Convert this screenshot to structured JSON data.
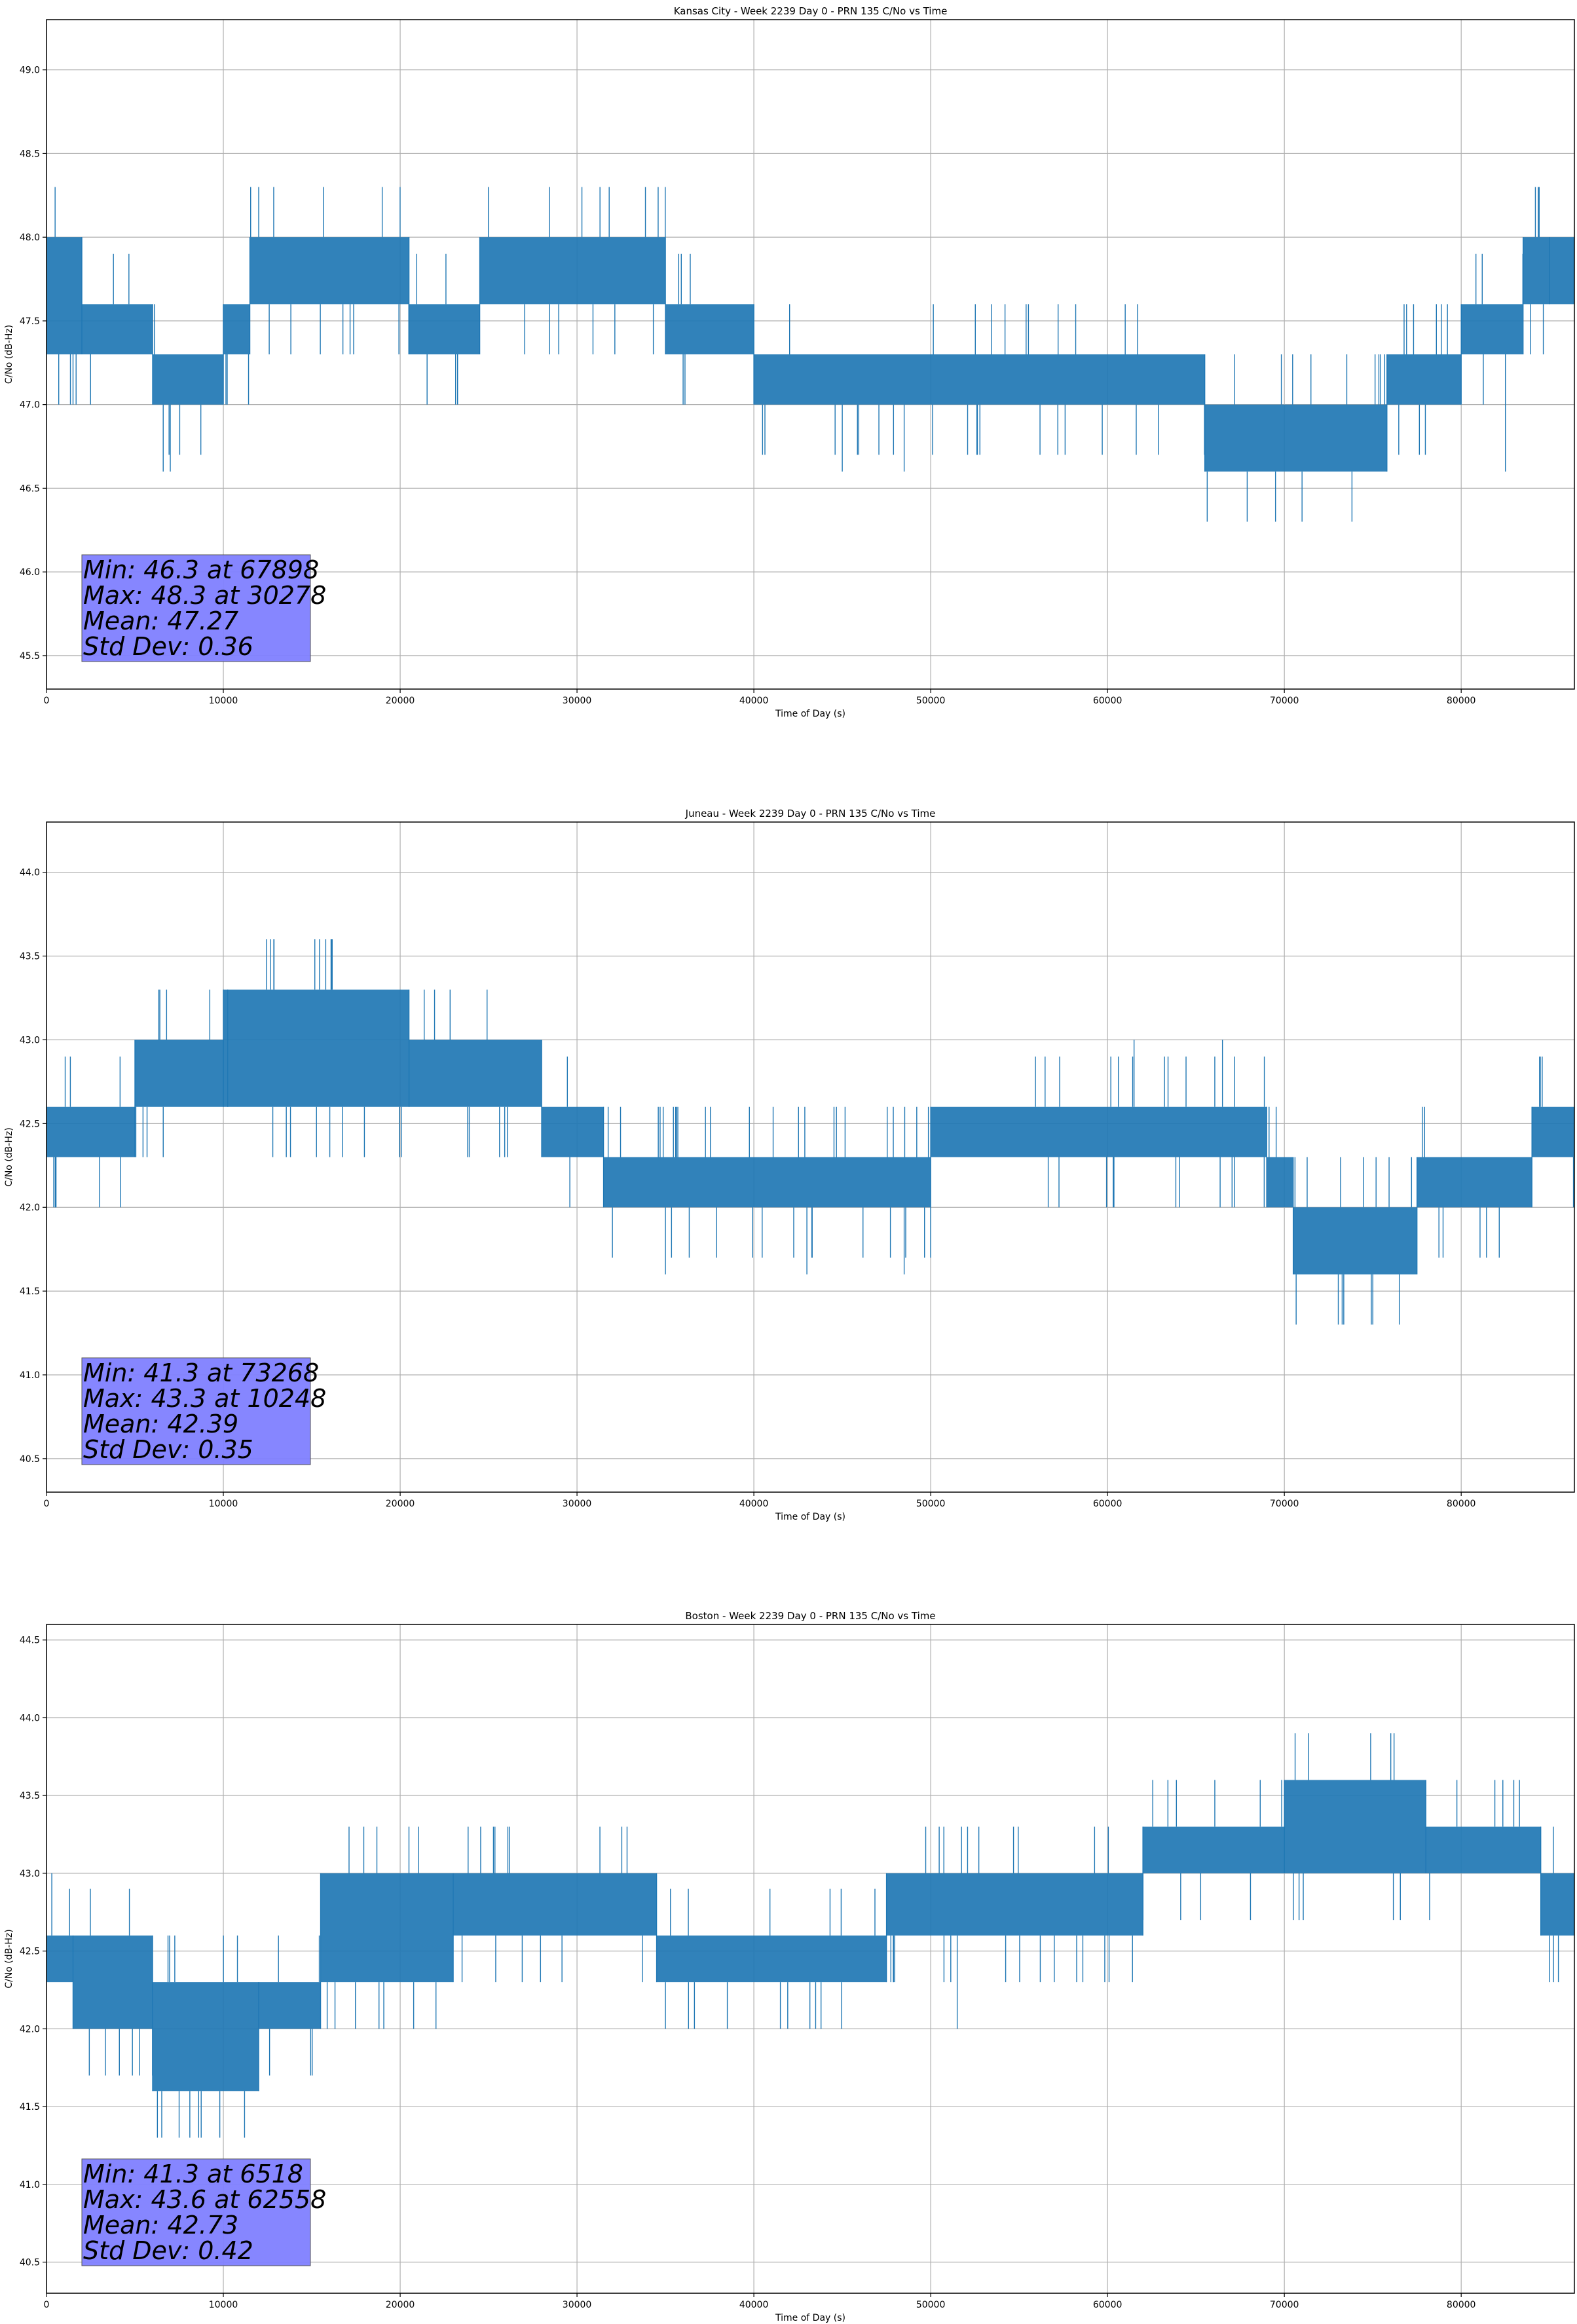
{
  "colors": {
    "line": "#1f77b4",
    "grid": "#b0b0b0",
    "stats_box": "#8080ff",
    "axis": "#000000"
  },
  "chart_data": [
    {
      "type": "line",
      "title": "Kansas City - Week 2239 Day 0 - PRN 135 C/No vs Time",
      "xlabel": "Time of Day (s)",
      "ylabel": "C/No (dB-Hz)",
      "xlim": [
        0,
        86400
      ],
      "ylim": [
        45.3,
        49.3
      ],
      "xticks": [
        0,
        10000,
        20000,
        30000,
        40000,
        50000,
        60000,
        70000,
        80000
      ],
      "xtick_labels": [
        "0",
        "10000",
        "20000",
        "30000",
        "40000",
        "50000",
        "60000",
        "70000",
        "80000"
      ],
      "yticks": [
        45.5,
        46.0,
        46.5,
        47.0,
        47.5,
        48.0,
        48.5,
        49.0
      ],
      "ytick_labels": [
        "45.5",
        "46.0",
        "46.5",
        "47.0",
        "47.5",
        "48.0",
        "48.5",
        "49.0"
      ],
      "grid": true,
      "series": [
        {
          "name": "C/No",
          "bands": [
            {
              "x0": 0,
              "x1": 2000,
              "lo": 47.3,
              "hi": 48.0
            },
            {
              "x0": 2000,
              "x1": 6000,
              "lo": 47.3,
              "hi": 47.6
            },
            {
              "x0": 6000,
              "x1": 10000,
              "lo": 47.0,
              "hi": 47.3
            },
            {
              "x0": 10000,
              "x1": 11500,
              "lo": 47.3,
              "hi": 47.6
            },
            {
              "x0": 11500,
              "x1": 20500,
              "lo": 47.6,
              "hi": 48.0
            },
            {
              "x0": 20500,
              "x1": 24500,
              "lo": 47.3,
              "hi": 47.6
            },
            {
              "x0": 24500,
              "x1": 35000,
              "lo": 47.6,
              "hi": 48.0
            },
            {
              "x0": 35000,
              "x1": 40000,
              "lo": 47.3,
              "hi": 47.6
            },
            {
              "x0": 40000,
              "x1": 65500,
              "lo": 47.0,
              "hi": 47.3
            },
            {
              "x0": 65500,
              "x1": 75800,
              "lo": 46.6,
              "hi": 47.0
            },
            {
              "x0": 75800,
              "x1": 80000,
              "lo": 47.0,
              "hi": 47.3
            },
            {
              "x0": 80000,
              "x1": 83500,
              "lo": 47.3,
              "hi": 47.6
            },
            {
              "x0": 83500,
              "x1": 86400,
              "lo": 47.6,
              "hi": 48.0
            }
          ],
          "excursions": [
            {
              "x": 1500,
              "y": 47.0
            },
            {
              "x": 6600,
              "y": 46.6
            },
            {
              "x": 7000,
              "y": 46.6
            },
            {
              "x": 30278,
              "y": 48.3
            },
            {
              "x": 31300,
              "y": 48.3
            },
            {
              "x": 45000,
              "y": 46.6
            },
            {
              "x": 48500,
              "y": 46.6
            },
            {
              "x": 61000,
              "y": 47.6
            },
            {
              "x": 67898,
              "y": 46.3
            },
            {
              "x": 69500,
              "y": 46.3
            },
            {
              "x": 71000,
              "y": 46.3
            },
            {
              "x": 82500,
              "y": 46.6
            },
            {
              "x": 85000,
              "y": 48.0
            }
          ]
        }
      ],
      "annotation": {
        "lines": [
          "Min: 46.3 at 67898",
          "Max: 48.3 at 30278",
          "Mean: 47.27",
          "Std Dev: 0.36"
        ],
        "placement": "bottom-left"
      }
    },
    {
      "type": "line",
      "title": "Juneau - Week 2239 Day 0 - PRN 135 C/No vs Time",
      "xlabel": "Time of Day (s)",
      "ylabel": "C/No (dB-Hz)",
      "xlim": [
        0,
        86400
      ],
      "ylim": [
        40.3,
        44.3
      ],
      "xticks": [
        0,
        10000,
        20000,
        30000,
        40000,
        50000,
        60000,
        70000,
        80000
      ],
      "xtick_labels": [
        "0",
        "10000",
        "20000",
        "30000",
        "40000",
        "50000",
        "60000",
        "70000",
        "80000"
      ],
      "yticks": [
        40.5,
        41.0,
        41.5,
        42.0,
        42.5,
        43.0,
        43.5,
        44.0
      ],
      "ytick_labels": [
        "40.5",
        "41.0",
        "41.5",
        "42.0",
        "42.5",
        "43.0",
        "43.5",
        "44.0"
      ],
      "grid": true,
      "series": [
        {
          "name": "C/No",
          "bands": [
            {
              "x0": 0,
              "x1": 5000,
              "lo": 42.3,
              "hi": 42.6
            },
            {
              "x0": 5000,
              "x1": 10000,
              "lo": 42.6,
              "hi": 43.0
            },
            {
              "x0": 10000,
              "x1": 20500,
              "lo": 42.6,
              "hi": 43.3
            },
            {
              "x0": 20500,
              "x1": 28000,
              "lo": 42.6,
              "hi": 43.0
            },
            {
              "x0": 28000,
              "x1": 31500,
              "lo": 42.3,
              "hi": 42.6
            },
            {
              "x0": 31500,
              "x1": 50000,
              "lo": 42.0,
              "hi": 42.3
            },
            {
              "x0": 50000,
              "x1": 69000,
              "lo": 42.3,
              "hi": 42.6
            },
            {
              "x0": 69000,
              "x1": 70500,
              "lo": 42.0,
              "hi": 42.3
            },
            {
              "x0": 70500,
              "x1": 77500,
              "lo": 41.6,
              "hi": 42.0
            },
            {
              "x0": 77500,
              "x1": 84000,
              "lo": 42.0,
              "hi": 42.3
            },
            {
              "x0": 84000,
              "x1": 86400,
              "lo": 42.3,
              "hi": 42.6
            }
          ],
          "excursions": [
            {
              "x": 500,
              "y": 42.0
            },
            {
              "x": 3000,
              "y": 42.0
            },
            {
              "x": 10248,
              "y": 43.3
            },
            {
              "x": 35000,
              "y": 41.6
            },
            {
              "x": 43000,
              "y": 41.6
            },
            {
              "x": 48500,
              "y": 41.6
            },
            {
              "x": 61500,
              "y": 43.0
            },
            {
              "x": 66500,
              "y": 43.0
            },
            {
              "x": 73268,
              "y": 41.3
            },
            {
              "x": 75000,
              "y": 41.3
            },
            {
              "x": 76500,
              "y": 41.3
            }
          ]
        }
      ],
      "annotation": {
        "lines": [
          "Min: 41.3 at 73268",
          "Max: 43.3 at 10248",
          "Mean: 42.39",
          "Std Dev: 0.35"
        ],
        "placement": "bottom-left"
      }
    },
    {
      "type": "line",
      "title": "Boston - Week 2239 Day 0 - PRN 135 C/No vs Time",
      "xlabel": "Time of Day (s)",
      "ylabel": "C/No (dB-Hz)",
      "xlim": [
        0,
        86400
      ],
      "ylim": [
        40.3,
        44.6
      ],
      "xticks": [
        0,
        10000,
        20000,
        30000,
        40000,
        50000,
        60000,
        70000,
        80000
      ],
      "xtick_labels": [
        "0",
        "10000",
        "20000",
        "30000",
        "40000",
        "50000",
        "60000",
        "70000",
        "80000"
      ],
      "yticks": [
        40.5,
        41.0,
        41.5,
        42.0,
        42.5,
        43.0,
        43.5,
        44.0,
        44.5
      ],
      "ytick_labels": [
        "40.5",
        "41.0",
        "41.5",
        "42.0",
        "42.5",
        "43.0",
        "43.5",
        "44.0",
        "44.5"
      ],
      "grid": true,
      "series": [
        {
          "name": "C/No",
          "bands": [
            {
              "x0": 0,
              "x1": 1500,
              "lo": 42.3,
              "hi": 42.6
            },
            {
              "x0": 1500,
              "x1": 6000,
              "lo": 42.0,
              "hi": 42.6
            },
            {
              "x0": 6000,
              "x1": 12000,
              "lo": 41.6,
              "hi": 42.3
            },
            {
              "x0": 12000,
              "x1": 15500,
              "lo": 42.0,
              "hi": 42.3
            },
            {
              "x0": 15500,
              "x1": 23000,
              "lo": 42.3,
              "hi": 43.0
            },
            {
              "x0": 23000,
              "x1": 34500,
              "lo": 42.6,
              "hi": 43.0
            },
            {
              "x0": 34500,
              "x1": 47500,
              "lo": 42.3,
              "hi": 42.6
            },
            {
              "x0": 47500,
              "x1": 62000,
              "lo": 42.6,
              "hi": 43.0
            },
            {
              "x0": 62000,
              "x1": 70000,
              "lo": 43.0,
              "hi": 43.3
            },
            {
              "x0": 70000,
              "x1": 78000,
              "lo": 43.0,
              "hi": 43.6
            },
            {
              "x0": 78000,
              "x1": 84500,
              "lo": 43.0,
              "hi": 43.3
            },
            {
              "x0": 84500,
              "x1": 86400,
              "lo": 42.6,
              "hi": 43.0
            }
          ],
          "excursions": [
            {
              "x": 300,
              "y": 43.0
            },
            {
              "x": 6518,
              "y": 41.3
            },
            {
              "x": 7500,
              "y": 41.3
            },
            {
              "x": 9800,
              "y": 41.3
            },
            {
              "x": 11200,
              "y": 41.3
            },
            {
              "x": 35000,
              "y": 42.0
            },
            {
              "x": 38500,
              "y": 42.0
            },
            {
              "x": 41500,
              "y": 42.0
            },
            {
              "x": 51500,
              "y": 42.0
            },
            {
              "x": 62558,
              "y": 43.6
            },
            {
              "x": 85000,
              "y": 42.3
            }
          ]
        }
      ],
      "annotation": {
        "lines": [
          "Min: 41.3 at 6518",
          "Max: 43.6 at 62558",
          "Mean: 42.73",
          "Std Dev: 0.42"
        ],
        "placement": "bottom-left"
      }
    }
  ]
}
